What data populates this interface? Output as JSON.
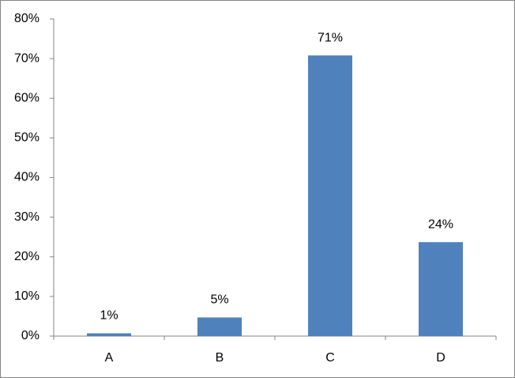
{
  "chart_data": {
    "type": "bar",
    "categories": [
      "A",
      "B",
      "C",
      "D"
    ],
    "values": [
      0.7,
      4.7,
      70.8,
      23.7
    ],
    "value_labels": [
      "1%",
      "5%",
      "71%",
      "24%"
    ],
    "color": "#4f81bd",
    "ylim": [
      0,
      80
    ],
    "yticks": [
      {
        "value": 0,
        "label": "0%"
      },
      {
        "value": 10,
        "label": "10%"
      },
      {
        "value": 20,
        "label": "20%"
      },
      {
        "value": 30,
        "label": "30%"
      },
      {
        "value": 40,
        "label": "40%"
      },
      {
        "value": 50,
        "label": "50%"
      },
      {
        "value": 60,
        "label": "60%"
      },
      {
        "value": 70,
        "label": "70%"
      },
      {
        "value": 80,
        "label": "80%"
      }
    ],
    "grid": false
  }
}
